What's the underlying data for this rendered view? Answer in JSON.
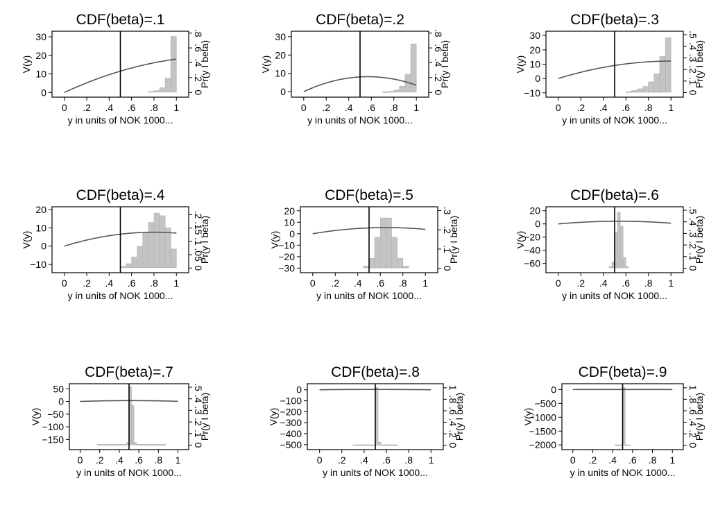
{
  "chart_data": [
    {
      "type": "line+histogram",
      "title": "CDF(beta)=.1",
      "xlabel": "y in units of NOK 1000...",
      "ylabel": "V(y)",
      "y2label": "Pr(y I beta)",
      "xticks": [
        0,
        0.2,
        0.4,
        0.6,
        0.8,
        1
      ],
      "xticklabels": [
        "0",
        ".2",
        ".4",
        ".6",
        ".8",
        "1"
      ],
      "yticks": [
        0,
        10,
        20,
        30
      ],
      "yticklabels": [
        "0",
        "10",
        "20",
        "30"
      ],
      "ylim": [
        -2.5,
        33
      ],
      "y2ticks": [
        0,
        0.2,
        0.4,
        0.6,
        0.8
      ],
      "y2ticklabels": [
        "0",
        ".2",
        ".4",
        ".6",
        ".8"
      ],
      "y2lim": [
        -0.0625,
        0.825
      ],
      "vline_x": 0.5,
      "curve": {
        "a": 28,
        "h": 1.4,
        "floor": null
      },
      "hist": {
        "start": 0.75,
        "width": 0.05,
        "values": [
          0.01,
          0.02,
          0.06,
          0.19,
          0.75
        ]
      }
    },
    {
      "type": "line+histogram",
      "title": "CDF(beta)=.2",
      "xlabel": "y in units of NOK 1000...",
      "ylabel": "V(y)",
      "y2label": "Pr(y I beta)",
      "xticks": [
        0,
        0.2,
        0.4,
        0.6,
        0.8,
        1
      ],
      "xticklabels": [
        "0",
        ".2",
        ".4",
        ".6",
        ".8",
        "1"
      ],
      "yticks": [
        0,
        10,
        20,
        30
      ],
      "yticklabels": [
        "0",
        "10",
        "20",
        "30"
      ],
      "ylim": [
        -3,
        33
      ],
      "y2ticks": [
        0,
        0.2,
        0.4,
        0.6,
        0.8
      ],
      "y2ticklabels": [
        "0",
        ".2",
        ".4",
        ".6",
        ".8"
      ],
      "y2lim": [
        -0.0625,
        0.825
      ],
      "vline_x": 0.5,
      "curve": {
        "a": 28.7,
        "h": 0.57,
        "floor": null
      },
      "hist": {
        "start": 0.7,
        "width": 0.05,
        "values": [
          0.005,
          0.01,
          0.03,
          0.08,
          0.24,
          0.65
        ]
      }
    },
    {
      "type": "line+histogram",
      "title": "CDF(beta)=.3",
      "xlabel": "y in units of NOK 1000...",
      "ylabel": "V(y)",
      "y2label": "Pr(y I beta)",
      "xticks": [
        0,
        0.2,
        0.4,
        0.6,
        0.8,
        1
      ],
      "xticklabels": [
        "0",
        ".2",
        ".4",
        ".6",
        ".8",
        "1"
      ],
      "yticks": [
        -10,
        0,
        10,
        20,
        30
      ],
      "yticklabels": [
        "-10",
        "0",
        "10",
        "20",
        "30"
      ],
      "ylim": [
        -13,
        33
      ],
      "y2ticks": [
        0,
        0.1,
        0.2,
        0.3,
        0.4,
        0.5
      ],
      "y2ticklabels": [
        "0",
        ".1",
        ".2",
        ".3",
        ".4",
        ".5"
      ],
      "y2lim": [
        -0.039,
        0.53
      ],
      "vline_x": 0.5,
      "curve": {
        "a": 24.3,
        "h": 1,
        "floor": -9.5
      },
      "hist": {
        "start": 0.6,
        "width": 0.05,
        "values": [
          0.005,
          0.015,
          0.03,
          0.05,
          0.09,
          0.16,
          0.31,
          0.47
        ]
      }
    },
    {
      "type": "line+histogram",
      "title": "CDF(beta)=.4",
      "xlabel": "y in units of NOK 1000...",
      "ylabel": "V(y)",
      "y2label": "Pr(y I beta)",
      "xticks": [
        0,
        0.2,
        0.4,
        0.6,
        0.8,
        1
      ],
      "xticklabels": [
        "0",
        ".2",
        ".4",
        ".6",
        ".8",
        "1"
      ],
      "yticks": [
        -10,
        0,
        10,
        20
      ],
      "yticklabels": [
        "-10",
        "0",
        "10",
        "20"
      ],
      "ylim": [
        -14.5,
        21.5
      ],
      "y2ticks": [
        0,
        0.05,
        0.1,
        0.15,
        0.2
      ],
      "y2ticklabels": [
        "0",
        ".05",
        ".1",
        ".15",
        ".2"
      ],
      "y2lim": [
        -0.0175,
        0.23
      ],
      "vline_x": 0.5,
      "curve": {
        "a": 19,
        "h": 0.8,
        "floor": -11.5
      },
      "hist": {
        "start": 0.5,
        "width": 0.05,
        "values": [
          0.005,
          0.015,
          0.04,
          0.08,
          0.13,
          0.17,
          0.205,
          0.195,
          0.15,
          0.07
        ]
      }
    },
    {
      "type": "line+histogram",
      "title": "CDF(beta)=.5",
      "xlabel": "y in units of NOK 1000...",
      "ylabel": "V(y)",
      "y2label": "Pr(y I beta)",
      "xticks": [
        0,
        0.2,
        0.4,
        0.6,
        0.8,
        1
      ],
      "xticklabels": [
        "0",
        ".2",
        ".4",
        ".6",
        ".8",
        "1"
      ],
      "yticks": [
        -30,
        -20,
        -10,
        0,
        10,
        20
      ],
      "yticklabels": [
        "-30",
        "-20",
        "-10",
        "0",
        "10",
        "20"
      ],
      "ylim": [
        -34,
        23.5
      ],
      "y2ticks": [
        0,
        0.1,
        0.2,
        0.3
      ],
      "y2ticklabels": [
        "0",
        ".1",
        ".2",
        ".3"
      ],
      "y2lim": [
        -0.023,
        0.32
      ],
      "vline_x": 0.5,
      "curve": {
        "a": 16.5,
        "h": 0.65,
        "floor": -30
      },
      "hist": {
        "start": 0.45,
        "width": 0.05,
        "values": [
          0.01,
          0.05,
          0.16,
          0.26,
          0.26,
          0.16,
          0.05,
          0.01
        ]
      }
    },
    {
      "type": "line+histogram",
      "title": "CDF(beta)=.6",
      "xlabel": "y in units of NOK 1000...",
      "ylabel": "V(y)",
      "y2label": "Pr(y I beta)",
      "xticks": [
        0,
        0.2,
        0.4,
        0.6,
        0.8,
        1
      ],
      "xticklabels": [
        "0",
        ".2",
        ".4",
        ".6",
        ".8",
        "1"
      ],
      "yticks": [
        -60,
        -40,
        -20,
        0,
        20
      ],
      "yticklabels": [
        "-60",
        "-40",
        "-20",
        "0",
        "20"
      ],
      "ylim": [
        -74,
        26
      ],
      "y2ticks": [
        0,
        0.1,
        0.2,
        0.3,
        0.4,
        0.5
      ],
      "y2ticklabels": [
        "0",
        ".1",
        ".2",
        ".3",
        ".4",
        ".5"
      ],
      "y2lim": [
        -0.039,
        0.53
      ],
      "vline_x": 0.5,
      "curve": {
        "a": 15,
        "h": 0.54,
        "floor": -65
      },
      "hist": {
        "start": 0.45,
        "width": 0.025,
        "values": [
          0.01,
          0.05,
          0.31,
          0.48,
          0.36,
          0.09,
          0.01
        ]
      }
    },
    {
      "type": "line+histogram",
      "title": "CDF(beta)=.7",
      "xlabel": "y in units of NOK 1000...",
      "ylabel": "V(y)",
      "y2label": "Pr(y I beta)",
      "xticks": [
        0,
        0.2,
        0.4,
        0.6,
        0.8,
        1
      ],
      "xticklabels": [
        "0",
        ".2",
        ".4",
        ".6",
        ".8",
        "1"
      ],
      "yticks": [
        -150,
        -100,
        -50,
        0,
        50
      ],
      "yticklabels": [
        "-150",
        "-100",
        "-50",
        "0",
        "50"
      ],
      "ylim": [
        -190,
        70
      ],
      "y2ticks": [
        0,
        0.1,
        0.2,
        0.3,
        0.4,
        0.5
      ],
      "y2ticklabels": [
        "0",
        ".1",
        ".2",
        ".3",
        ".4",
        ".5"
      ],
      "y2lim": [
        -0.039,
        0.53
      ],
      "vline_x": 0.5,
      "curve": {
        "a": 13,
        "h": 0.52,
        "floor": -160
      },
      "hist": {
        "start": 0.175,
        "width": 0.025,
        "values": [
          0.003,
          0.003,
          0.003,
          0.003,
          0.003,
          0.003,
          0.003,
          0.003,
          0.003,
          0.003,
          0.003,
          0.003,
          0.02,
          0.5,
          0.34,
          0.02,
          0.003,
          0.003,
          0.003,
          0.003,
          0.003,
          0.003,
          0.003,
          0.003,
          0.003,
          0.003,
          0.003,
          0.003
        ]
      }
    },
    {
      "type": "line+histogram",
      "title": "CDF(beta)=.8",
      "xlabel": "y in units of NOK 1000...",
      "ylabel": "V(y)",
      "y2label": "Pr(y I beta)",
      "xticks": [
        0,
        0.2,
        0.4,
        0.6,
        0.8,
        1
      ],
      "xticklabels": [
        "0",
        ".2",
        ".4",
        ".6",
        ".8",
        "1"
      ],
      "yticks": [
        -500,
        -400,
        -300,
        -200,
        -100,
        0
      ],
      "yticklabels": [
        "-500",
        "-400",
        "-300",
        "-200",
        "-100",
        "0"
      ],
      "ylim": [
        -545,
        55
      ],
      "y2ticks": [
        0,
        0.2,
        0.4,
        0.6,
        0.8,
        1
      ],
      "y2ticklabels": [
        "0",
        ".2",
        ".4",
        ".6",
        ".8",
        "1"
      ],
      "y2lim": [
        -0.075,
        1.07
      ],
      "vline_x": 0.5,
      "curve": {
        "a": 12,
        "h": 0.5,
        "floor": -500
      },
      "hist": {
        "start": 0.3,
        "width": 0.025,
        "values": [
          0.003,
          0.003,
          0.003,
          0.003,
          0.003,
          0.003,
          0.003,
          0.003,
          1.0,
          0.05,
          0.003,
          0.003,
          0.003,
          0.003,
          0.003,
          0.003
        ]
      }
    },
    {
      "type": "line+histogram",
      "title": "CDF(beta)=.9",
      "xlabel": "y in units of NOK 1000...",
      "ylabel": "V(y)",
      "y2label": "Pr(y I beta)",
      "xticks": [
        0,
        0.2,
        0.4,
        0.6,
        0.8,
        1
      ],
      "xticklabels": [
        "0",
        ".2",
        ".4",
        ".6",
        ".8",
        "1"
      ],
      "yticks": [
        -2000,
        -1500,
        -1000,
        -500,
        0
      ],
      "yticklabels": [
        "-2000",
        "-1500",
        "-1000",
        "-500",
        "0"
      ],
      "ylim": [
        -2170,
        210
      ],
      "y2ticks": [
        0,
        0.2,
        0.4,
        0.6,
        0.8,
        1
      ],
      "y2ticklabels": [
        "0",
        ".2",
        ".4",
        ".6",
        ".8",
        "1"
      ],
      "y2lim": [
        -0.075,
        1.07
      ],
      "vline_x": 0.5,
      "curve": {
        "a": 10,
        "h": 0.5,
        "floor": -2040
      },
      "hist": {
        "start": 0.425,
        "width": 0.025,
        "values": [
          0.003,
          0.003,
          0.003,
          1.0,
          0.003,
          0.003
        ]
      }
    }
  ]
}
